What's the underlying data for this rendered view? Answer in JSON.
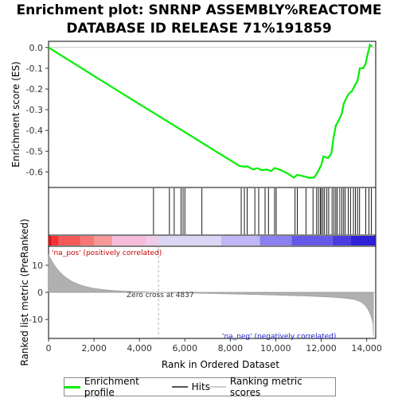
{
  "title": "Enrichment plot: SNRNP ASSEMBLY%REACTOME\nDATABASE ID RELEASE 71%191859",
  "chart_data": {
    "type": "line",
    "title": "Enrichment plot: SNRNP ASSEMBLY%REACTOME DATABASE ID RELEASE 71%191859",
    "xlabel": "Rank in Ordered Dataset",
    "es_ylabel": "Enrichment score (ES)",
    "metric_ylabel": "Ranked list metric (PreRanked)",
    "xlim": [
      0,
      14400
    ],
    "es_ylim": [
      -0.675,
      0.03
    ],
    "metric_ylim": [
      -17,
      17
    ],
    "x_ticks": [
      0,
      2000,
      4000,
      6000,
      8000,
      10000,
      12000,
      14000
    ],
    "x_tick_labels": [
      "0",
      "2,000",
      "4,000",
      "6,000",
      "8,000",
      "10,000",
      "12,000",
      "14,000"
    ],
    "es_ticks": [
      0.0,
      -0.1,
      -0.2,
      -0.3,
      -0.4,
      -0.5,
      -0.6
    ],
    "es_tick_labels": [
      "0.0",
      "-0.1",
      "-0.2",
      "-0.3",
      "-0.4",
      "-0.5",
      "-0.6"
    ],
    "metric_ticks": [
      10,
      0,
      -10
    ],
    "metric_tick_labels": [
      "10",
      "0",
      "-10"
    ],
    "zero_cross_rank": 4837,
    "zero_cross_label": "Zero cross at 4837",
    "pos_label": "'na_pos' (positively correlated)",
    "neg_label": "'na_neg' (negatively correlated)",
    "legend": [
      "Enrichment profile",
      "Hits",
      "Ranking metric scores"
    ],
    "colors": {
      "profile": "#00ee00",
      "hits": "#000000",
      "metric_fill": "#b0b0b0",
      "pos_text": "#cc0000",
      "neg_text": "#2222cc",
      "zero_line": "#999999"
    },
    "es_profile": {
      "x": [
        0,
        2000,
        4000,
        6000,
        7000,
        8400,
        8600,
        8750,
        9000,
        9200,
        9400,
        9600,
        9800,
        9950,
        10200,
        10500,
        10800,
        10950,
        11200,
        11500,
        11700,
        11850,
        12000,
        12100,
        12300,
        12450,
        12550,
        12650,
        12800,
        12900,
        13000,
        13200,
        13350,
        13500,
        13600,
        13700,
        13850,
        13950,
        14050,
        14150,
        14250
      ],
      "y": [
        0.0,
        -0.137,
        -0.273,
        -0.408,
        -0.476,
        -0.571,
        -0.575,
        -0.573,
        -0.588,
        -0.582,
        -0.592,
        -0.588,
        -0.596,
        -0.581,
        -0.59,
        -0.606,
        -0.627,
        -0.614,
        -0.62,
        -0.629,
        -0.626,
        -0.6,
        -0.568,
        -0.525,
        -0.533,
        -0.51,
        -0.43,
        -0.375,
        -0.345,
        -0.32,
        -0.268,
        -0.225,
        -0.21,
        -0.18,
        -0.16,
        -0.1,
        -0.1,
        -0.08,
        -0.03,
        0.013,
        0.005
      ]
    },
    "hits": [
      4620,
      5320,
      5530,
      5830,
      5920,
      6000,
      6750,
      8480,
      8620,
      8740,
      9080,
      9250,
      9530,
      9680,
      9950,
      10020,
      10850,
      10950,
      11330,
      11640,
      11800,
      11880,
      11960,
      12010,
      12080,
      12150,
      12250,
      12330,
      12480,
      12560,
      12640,
      12700,
      12820,
      12910,
      12990,
      13060,
      13190,
      13290,
      13420,
      13510,
      13600,
      13690,
      13960,
      14100,
      14210
    ],
    "heatmap_bands": [
      {
        "start": 0,
        "end": 150,
        "color": "#ee1111"
      },
      {
        "start": 150,
        "end": 450,
        "color": "#f33333"
      },
      {
        "start": 450,
        "end": 1400,
        "color": "#f55a5a"
      },
      {
        "start": 1400,
        "end": 2000,
        "color": "#f77777"
      },
      {
        "start": 2000,
        "end": 2800,
        "color": "#f69898"
      },
      {
        "start": 2800,
        "end": 4300,
        "color": "#f7bcdc"
      },
      {
        "start": 4300,
        "end": 4837,
        "color": "#efcdea"
      },
      {
        "start": 4837,
        "end": 7600,
        "color": "#dcd5f5"
      },
      {
        "start": 7600,
        "end": 9300,
        "color": "#bfb7f4"
      },
      {
        "start": 9300,
        "end": 10700,
        "color": "#8a80ef"
      },
      {
        "start": 10700,
        "end": 12500,
        "color": "#6458e6"
      },
      {
        "start": 12500,
        "end": 13300,
        "color": "#4a3ce0"
      },
      {
        "start": 13300,
        "end": 14400,
        "color": "#2f1fd6"
      }
    ]
  }
}
